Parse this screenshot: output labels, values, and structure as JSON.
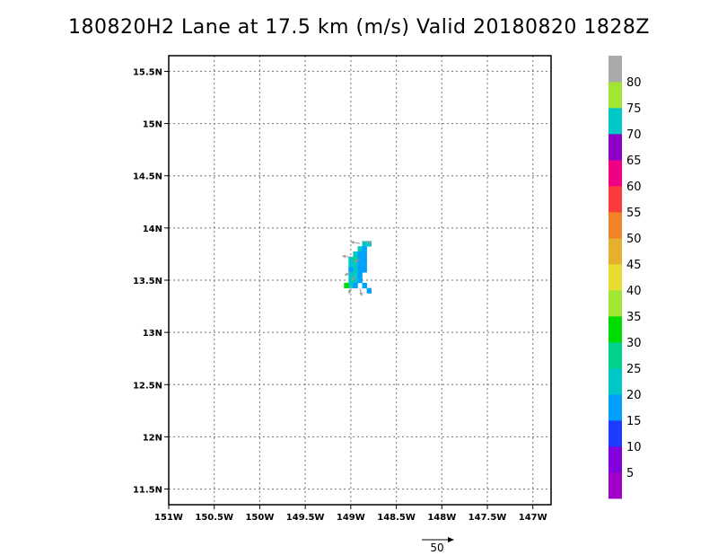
{
  "title": "180820H2 Lane at 17.5 km (m/s) Valid 20180820  1828Z",
  "chart_data": {
    "type": "heatmap",
    "x_ticks": [
      {
        "value": -151.0,
        "label": "151W"
      },
      {
        "value": -150.5,
        "label": "150.5W"
      },
      {
        "value": -150.0,
        "label": "150W"
      },
      {
        "value": -149.5,
        "label": "149.5W"
      },
      {
        "value": -149.0,
        "label": "149W"
      },
      {
        "value": -148.5,
        "label": "148.5W"
      },
      {
        "value": -148.0,
        "label": "148W"
      },
      {
        "value": -147.5,
        "label": "147.5W"
      },
      {
        "value": -147.0,
        "label": "147W"
      }
    ],
    "y_ticks": [
      {
        "value": 11.5,
        "label": "11.5N"
      },
      {
        "value": 12.0,
        "label": "12N"
      },
      {
        "value": 12.5,
        "label": "12.5N"
      },
      {
        "value": 13.0,
        "label": "13N"
      },
      {
        "value": 13.5,
        "label": "13.5N"
      },
      {
        "value": 14.0,
        "label": "14N"
      },
      {
        "value": 14.5,
        "label": "14.5N"
      },
      {
        "value": 15.0,
        "label": "15N"
      },
      {
        "value": 15.5,
        "label": "15.5N"
      }
    ],
    "xlim": [
      -151.0,
      -146.8
    ],
    "ylim": [
      11.35,
      15.65
    ],
    "grid": true,
    "cell_size_deg": 0.05,
    "cells": [
      {
        "lon": -148.85,
        "lat": 13.85,
        "value": 22
      },
      {
        "lon": -148.8,
        "lat": 13.85,
        "value": 24
      },
      {
        "lon": -148.9,
        "lat": 13.8,
        "value": 21
      },
      {
        "lon": -148.85,
        "lat": 13.8,
        "value": 18
      },
      {
        "lon": -148.95,
        "lat": 13.75,
        "value": 24
      },
      {
        "lon": -148.9,
        "lat": 13.75,
        "value": 19
      },
      {
        "lon": -148.85,
        "lat": 13.75,
        "value": 17
      },
      {
        "lon": -149.0,
        "lat": 13.7,
        "value": 22
      },
      {
        "lon": -148.95,
        "lat": 13.7,
        "value": 25
      },
      {
        "lon": -148.9,
        "lat": 13.7,
        "value": 18
      },
      {
        "lon": -148.85,
        "lat": 13.7,
        "value": 16
      },
      {
        "lon": -149.0,
        "lat": 13.65,
        "value": 21
      },
      {
        "lon": -148.95,
        "lat": 13.65,
        "value": 22
      },
      {
        "lon": -148.9,
        "lat": 13.65,
        "value": 19
      },
      {
        "lon": -148.85,
        "lat": 13.65,
        "value": 16
      },
      {
        "lon": -149.0,
        "lat": 13.6,
        "value": 18
      },
      {
        "lon": -148.95,
        "lat": 13.6,
        "value": 21
      },
      {
        "lon": -148.9,
        "lat": 13.6,
        "value": 19
      },
      {
        "lon": -148.85,
        "lat": 13.6,
        "value": 16
      },
      {
        "lon": -149.0,
        "lat": 13.55,
        "value": 24
      },
      {
        "lon": -148.95,
        "lat": 13.55,
        "value": 21
      },
      {
        "lon": -148.9,
        "lat": 13.55,
        "value": 18
      },
      {
        "lon": -149.0,
        "lat": 13.5,
        "value": 22
      },
      {
        "lon": -148.95,
        "lat": 13.5,
        "value": 21
      },
      {
        "lon": -148.9,
        "lat": 13.5,
        "value": 18
      },
      {
        "lon": -149.05,
        "lat": 13.45,
        "value": 31
      },
      {
        "lon": -149.0,
        "lat": 13.45,
        "value": 21
      },
      {
        "lon": -148.95,
        "lat": 13.45,
        "value": 19
      },
      {
        "lon": -148.85,
        "lat": 13.45,
        "value": 16
      },
      {
        "lon": -148.8,
        "lat": 13.4,
        "value": 16
      }
    ],
    "wind_vectors": [
      {
        "lon": -148.9,
        "lat": 13.85,
        "u": -15,
        "v": 3
      },
      {
        "lon": -148.85,
        "lat": 13.87,
        "u": 12,
        "v": -2
      },
      {
        "lon": -149.0,
        "lat": 13.72,
        "u": -14,
        "v": 2
      },
      {
        "lon": -148.9,
        "lat": 13.7,
        "u": -10,
        "v": -4
      },
      {
        "lon": -149.0,
        "lat": 13.58,
        "u": -10,
        "v": -6
      },
      {
        "lon": -148.95,
        "lat": 13.55,
        "u": -6,
        "v": -10
      },
      {
        "lon": -149.0,
        "lat": 13.45,
        "u": -3,
        "v": -14
      },
      {
        "lon": -148.9,
        "lat": 13.42,
        "u": 3,
        "v": -12
      }
    ],
    "reference_vector": {
      "label": "50",
      "value": 50
    }
  },
  "colorbar": {
    "labels": [
      "5",
      "10",
      "15",
      "20",
      "25",
      "30",
      "35",
      "40",
      "45",
      "50",
      "55",
      "60",
      "65",
      "70",
      "75",
      "80"
    ],
    "colors": [
      "#a000c8",
      "#8200dc",
      "#1e3cff",
      "#00a0ff",
      "#00c8c8",
      "#00d28c",
      "#00dc00",
      "#a0e632",
      "#e6dc32",
      "#e6af2d",
      "#f08228",
      "#fa3c3c",
      "#f00082",
      "#8c00c8",
      "#00c8c8",
      "#a0e632",
      "#aaaaaa"
    ]
  }
}
